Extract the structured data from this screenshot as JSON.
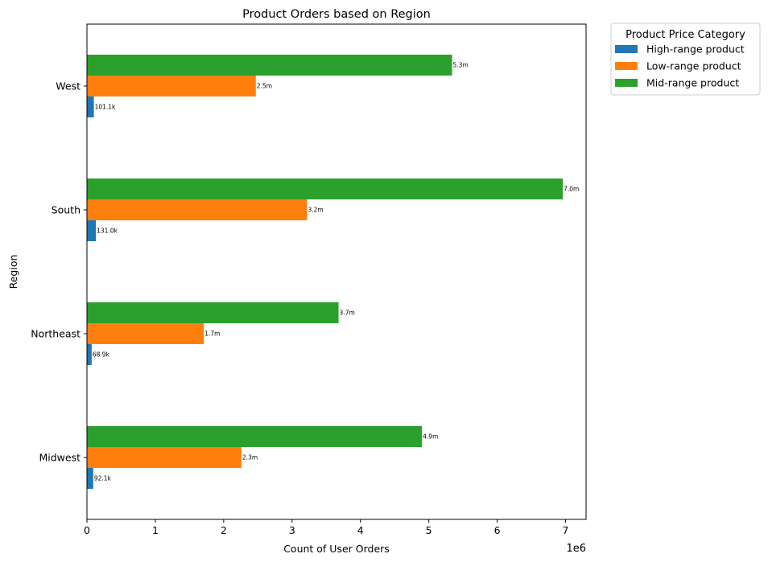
{
  "chart_data": {
    "type": "bar",
    "orientation": "horizontal",
    "title": "Product Orders based on Region",
    "xlabel": "Count of User Orders",
    "ylabel": "Region",
    "x_offset_label": "1e6",
    "x_scale_multiplier": 1000000,
    "xlim": [
      0,
      7300000
    ],
    "x_ticks": [
      0,
      1,
      2,
      3,
      4,
      5,
      6,
      7
    ],
    "categories": [
      "Midwest",
      "Northeast",
      "South",
      "West"
    ],
    "legend": {
      "title": "Product Price Category",
      "placement": "outside-top-right"
    },
    "grid": false,
    "series": [
      {
        "name": "High-range product",
        "color": "#1f77b4",
        "values": [
          92100,
          68900,
          131000,
          101100
        ],
        "labels": [
          "92.1k",
          "68.9k",
          "131.0k",
          "101.1k"
        ]
      },
      {
        "name": "Low-range product",
        "color": "#ff7f0e",
        "values": [
          2260000,
          1710000,
          3220000,
          2470000
        ],
        "labels": [
          "2.3m",
          "1.7m",
          "3.2m",
          "2.5m"
        ]
      },
      {
        "name": "Mid-range product",
        "color": "#2ca02c",
        "values": [
          4900000,
          3680000,
          6960000,
          5340000
        ],
        "labels": [
          "4.9m",
          "3.7m",
          "7.0m",
          "5.3m"
        ]
      }
    ]
  }
}
